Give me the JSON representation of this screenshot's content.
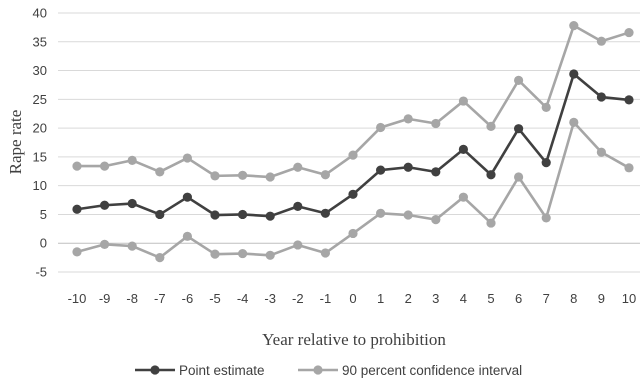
{
  "chart_data": {
    "type": "line",
    "xlabel": "Year relative to prohibition",
    "ylabel": "Rape rate",
    "x": [
      -10,
      -9,
      -8,
      -7,
      -6,
      -5,
      -4,
      -3,
      -2,
      -1,
      0,
      1,
      2,
      3,
      4,
      5,
      6,
      7,
      8,
      9,
      10
    ],
    "x_tick_labels": [
      "-10",
      "-9",
      "-8",
      "-7",
      "-6",
      "-5",
      "-4",
      "-3",
      "-2",
      "-1",
      "0",
      "1",
      "2",
      "3",
      "4",
      "5",
      "6",
      "7",
      "8",
      "9",
      "10"
    ],
    "ylim": [
      -5,
      40
    ],
    "y_ticks": [
      -5,
      0,
      5,
      10,
      15,
      20,
      25,
      30,
      35,
      40
    ],
    "y_tick_labels": [
      "-5",
      "0",
      "5",
      "10",
      "15",
      "20",
      "25",
      "30",
      "35",
      "40"
    ],
    "grid": true,
    "legend_position": "bottom",
    "series": [
      {
        "name": "Point estimate",
        "color": "#404040",
        "values": [
          5.9,
          6.6,
          6.9,
          5.0,
          8.0,
          4.9,
          5.0,
          4.7,
          6.4,
          5.2,
          8.5,
          12.7,
          13.2,
          12.4,
          16.3,
          11.9,
          19.9,
          14.0,
          29.4,
          25.4,
          24.9
        ]
      },
      {
        "name": "90 percent confidence interval",
        "color": "#a6a6a6",
        "values": [
          13.4,
          13.4,
          14.4,
          12.4,
          14.8,
          11.7,
          11.8,
          11.5,
          13.2,
          11.9,
          15.3,
          20.1,
          21.6,
          20.8,
          24.7,
          20.3,
          28.3,
          23.6,
          37.8,
          35.1,
          36.6
        ]
      },
      {
        "name": "",
        "legend_hidden": true,
        "color": "#a6a6a6",
        "values": [
          -1.5,
          -0.2,
          -0.5,
          -2.5,
          1.2,
          -1.9,
          -1.8,
          -2.1,
          -0.3,
          -1.7,
          1.7,
          5.2,
          4.9,
          4.1,
          8.0,
          3.5,
          11.5,
          4.4,
          21.0,
          15.8,
          13.1
        ]
      }
    ]
  }
}
